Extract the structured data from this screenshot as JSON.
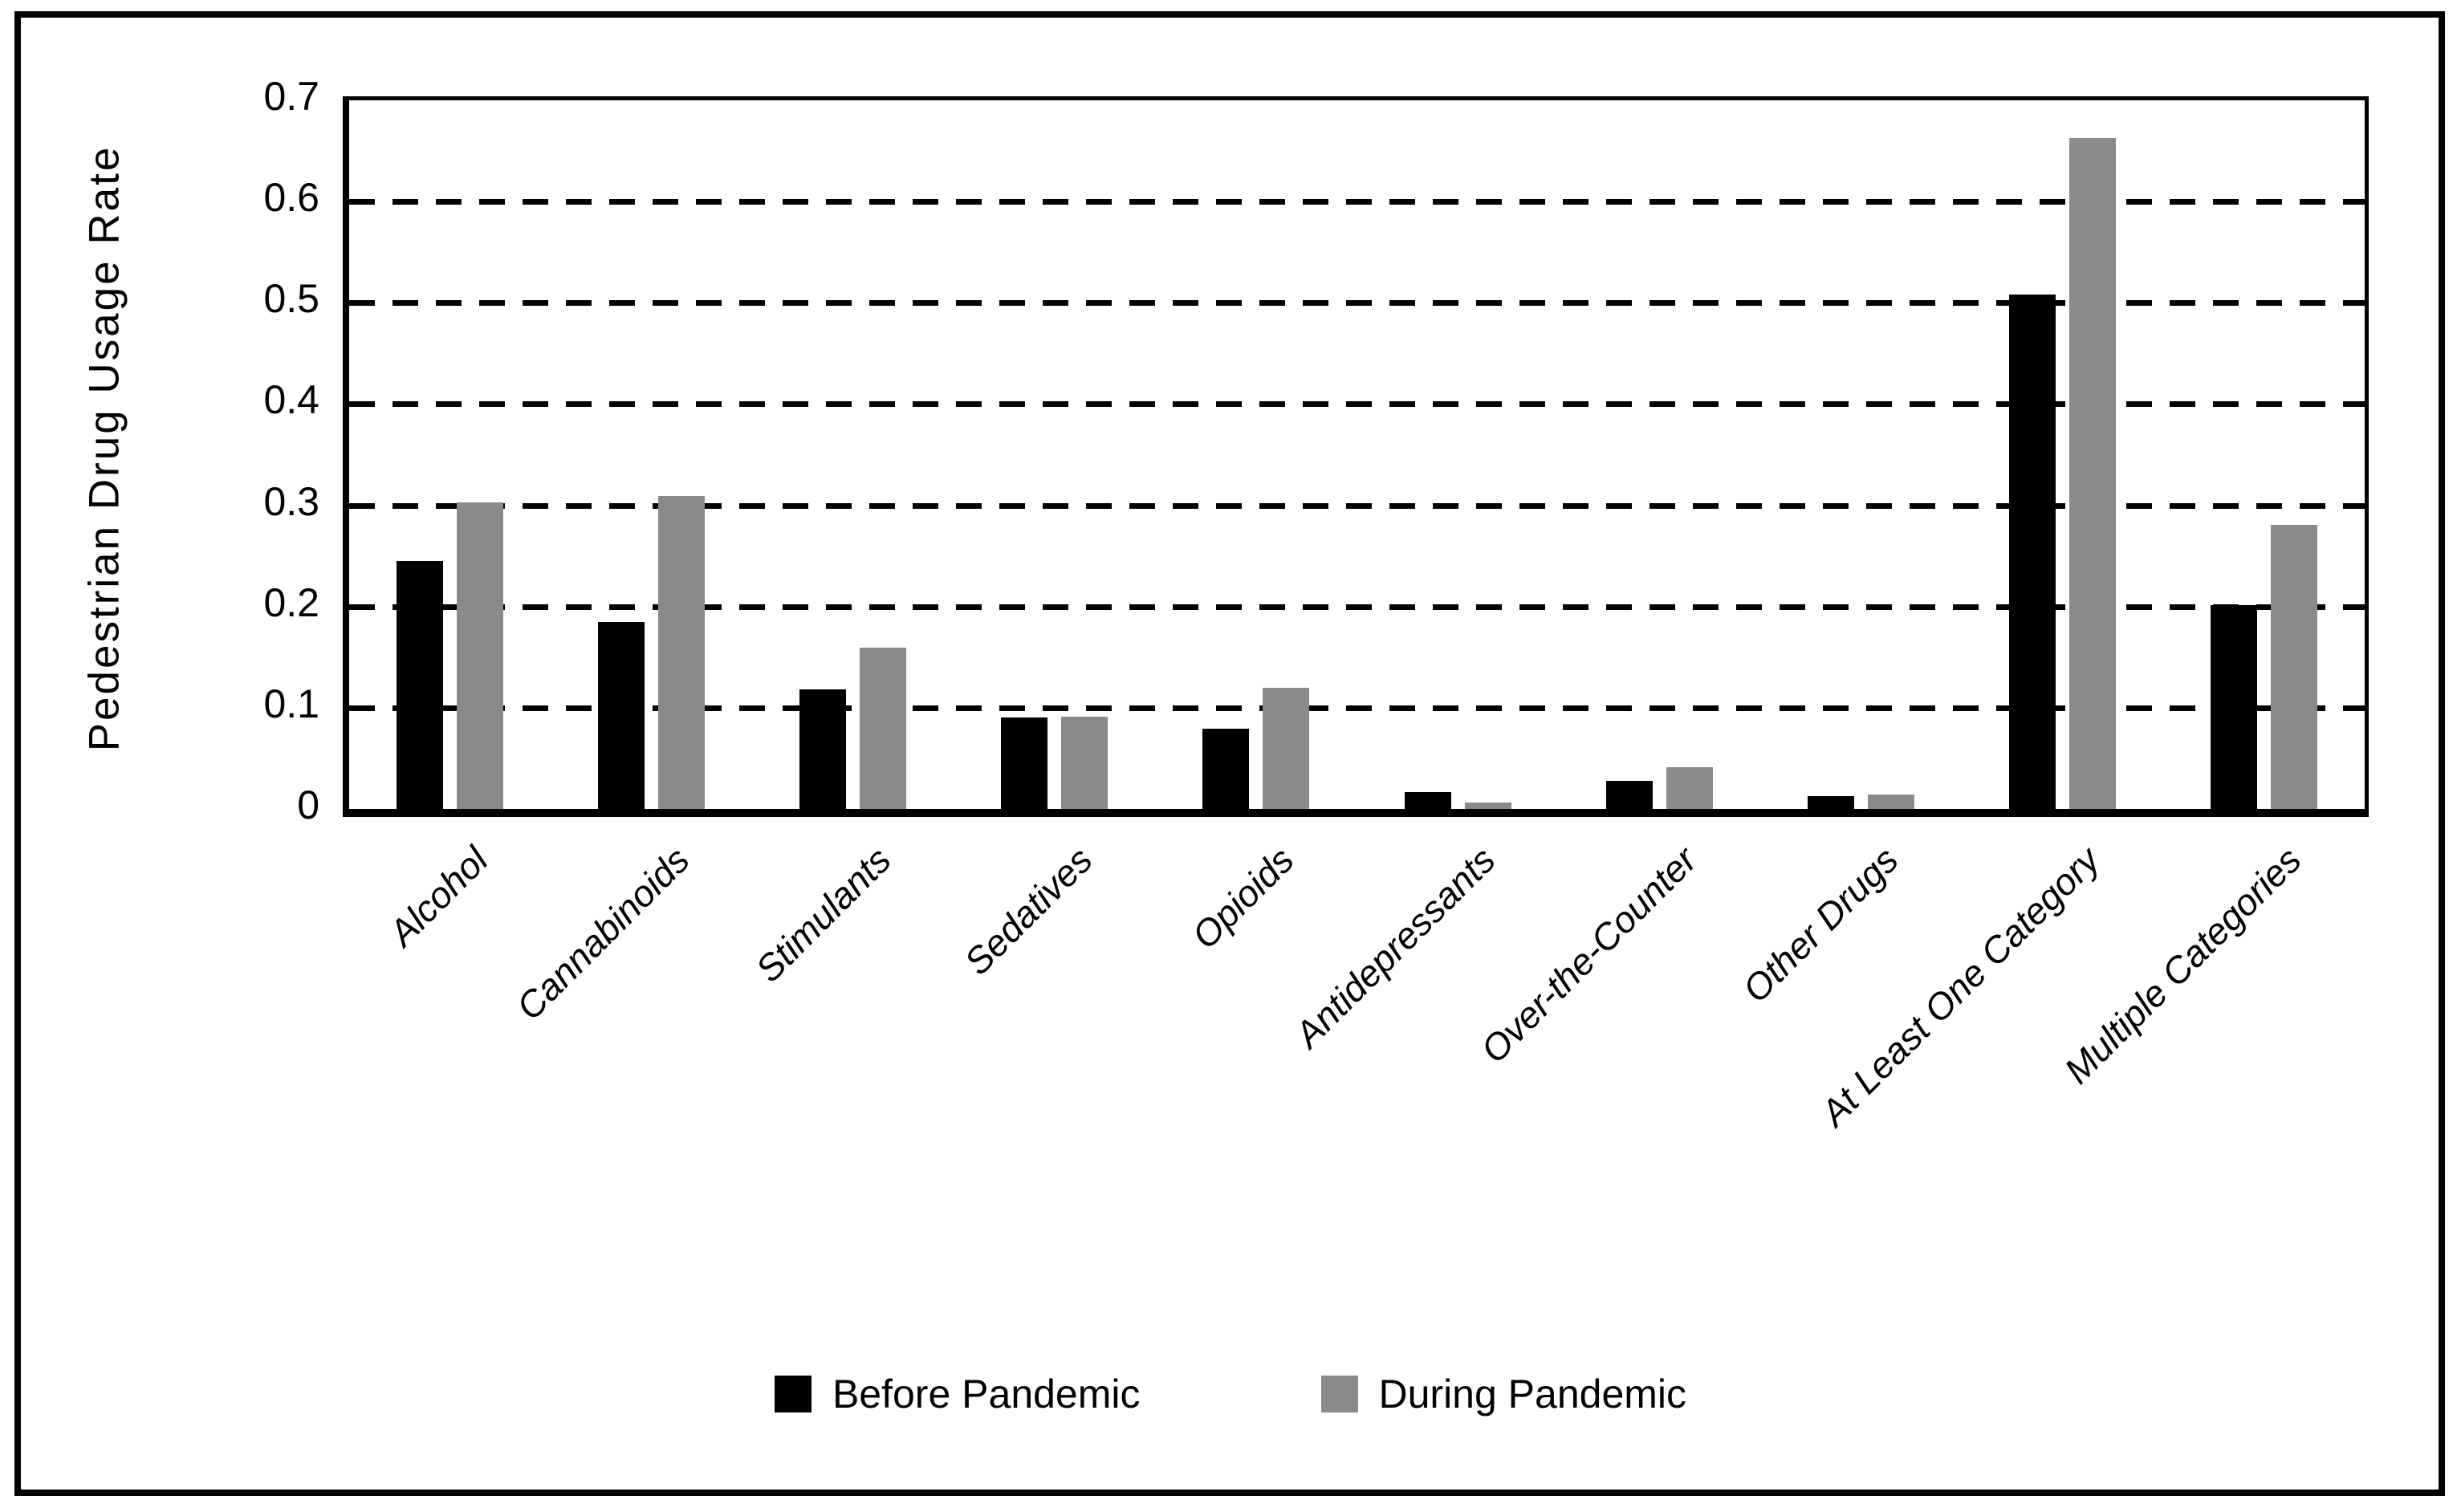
{
  "chart_data": {
    "type": "bar",
    "title": "",
    "xlabel": "",
    "ylabel": "Pedestrian Drug Usage Rate",
    "ylim": [
      0,
      0.7
    ],
    "ytick_step": 0.1,
    "yticks": [
      "0.7",
      "0.6",
      "0.5",
      "0.4",
      "0.3",
      "0.2",
      "0.1",
      "0"
    ],
    "grid": "horizontal dashed gridlines at every 0.1",
    "legend_position": "bottom center",
    "categories": [
      "Alcohol",
      "Cannabinoids",
      "Stimulants",
      "Sedatives",
      "Opioids",
      "Antidepressants",
      "Over-the-Counter",
      "Other Drugs",
      "At Least One Category",
      "Multiple Categories"
    ],
    "series": [
      {
        "name": "Before Pandemic",
        "color": "#000000",
        "values": [
          0.245,
          0.185,
          0.118,
          0.09,
          0.079,
          0.017,
          0.028,
          0.013,
          0.508,
          0.201
        ]
      },
      {
        "name": "During Pandemic",
        "color": "#8a8a8a",
        "values": [
          0.303,
          0.309,
          0.159,
          0.091,
          0.12,
          0.006,
          0.041,
          0.014,
          0.663,
          0.281
        ]
      }
    ]
  }
}
